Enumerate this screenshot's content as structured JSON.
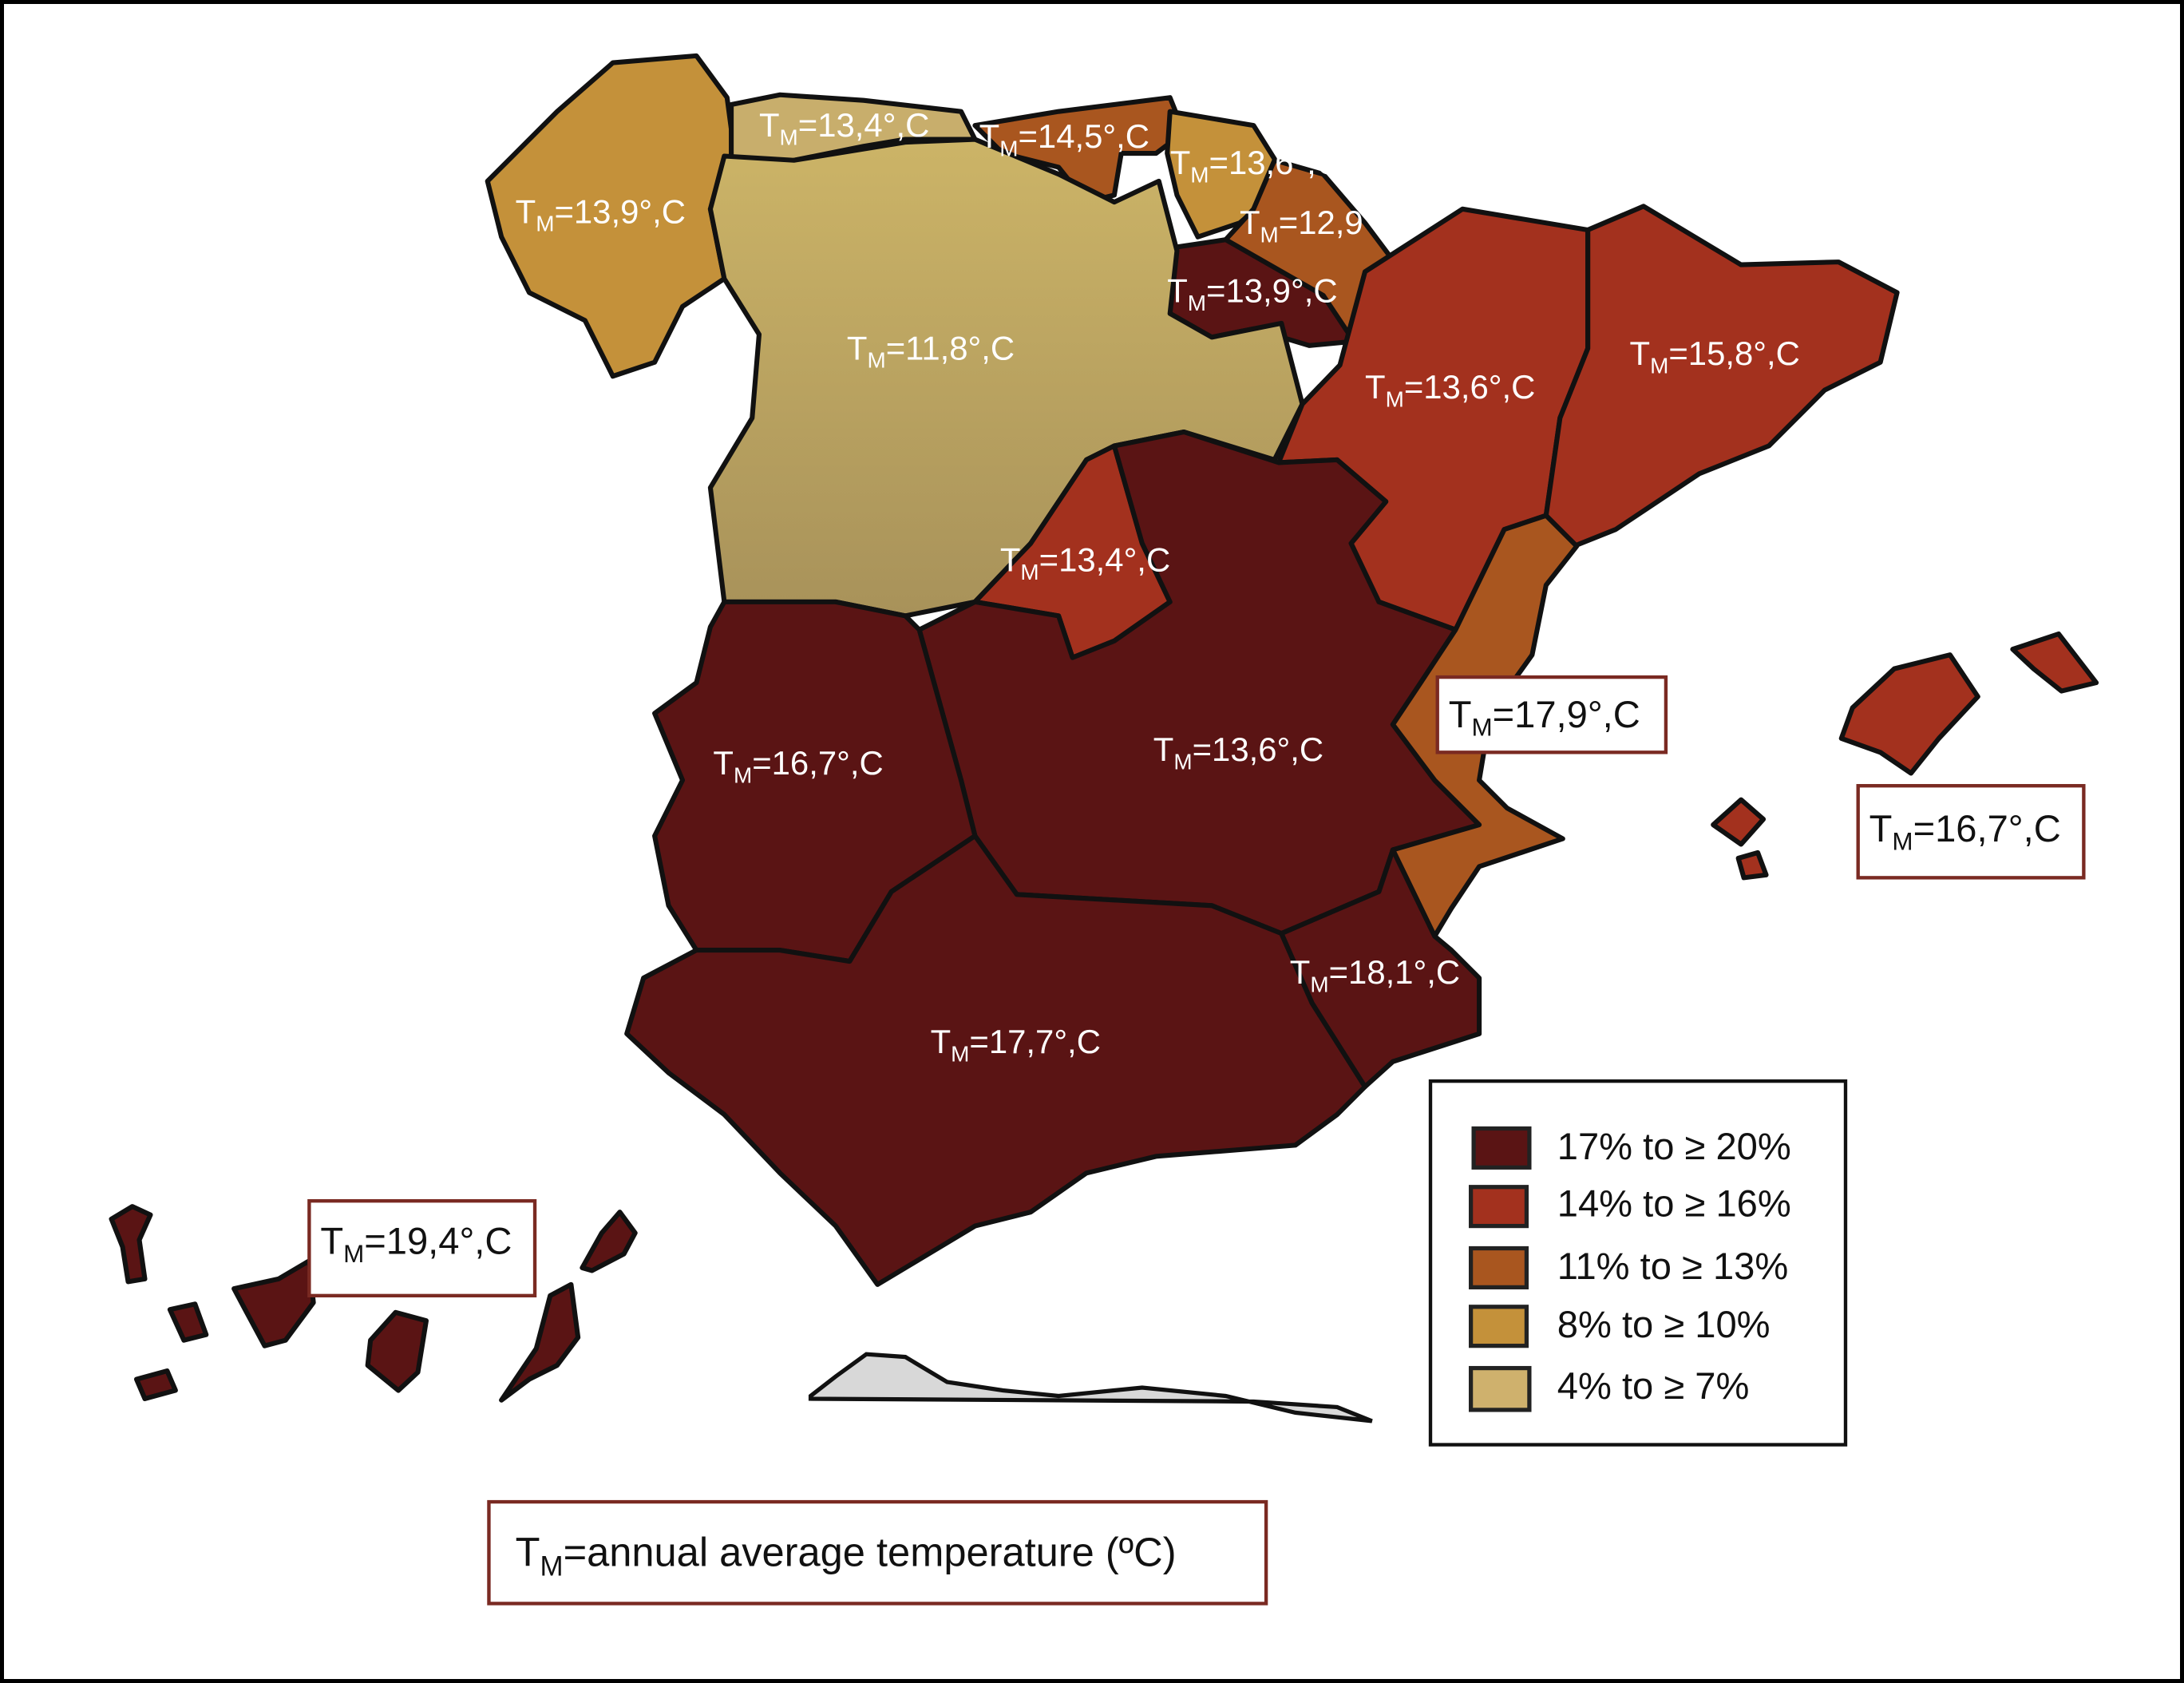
{
  "map": {
    "labels": {
      "galicia": {
        "T": "T",
        "sub": "M",
        "val": "=13,9°,C"
      },
      "asturias": {
        "T": "T",
        "sub": "M",
        "val": "=13,4°,C"
      },
      "cantabria": {
        "T": "T",
        "sub": "M",
        "val": "=14,5°,C"
      },
      "basque": {
        "T": "T",
        "sub": "M",
        "val": "=13,6°,C"
      },
      "navarra": {
        "T": "T",
        "sub": "M",
        "val": "=12,9°,C"
      },
      "rioja": {
        "T": "T",
        "sub": "M",
        "val": "=13,9°,C"
      },
      "castilla_leon": {
        "T": "T",
        "sub": "M",
        "val": "=11,8°,C"
      },
      "aragon": {
        "T": "T",
        "sub": "M",
        "val": "=13,6°,C"
      },
      "catalonia": {
        "T": "T",
        "sub": "M",
        "val": "=15,8°,C"
      },
      "madrid": {
        "T": "T",
        "sub": "M",
        "val": "=13,4°,C"
      },
      "castilla_mancha": {
        "T": "T",
        "sub": "M",
        "val": "=13,6°,C"
      },
      "valencia": {
        "T": "T",
        "sub": "M",
        "val": "=17,9°,C"
      },
      "extremadura": {
        "T": "T",
        "sub": "M",
        "val": "=16,7°,C"
      },
      "balearic": {
        "T": "T",
        "sub": "M",
        "val": "=16,7°,C"
      },
      "murcia": {
        "T": "T",
        "sub": "M",
        "val": "=18,1°,C"
      },
      "andalusia": {
        "T": "T",
        "sub": "M",
        "val": "=17,7°,C"
      },
      "canary": {
        "T": "T",
        "sub": "M",
        "val": "=19,4°,C"
      }
    },
    "legend": [
      {
        "label": "17% to ≥ 20%",
        "color": "#5a1414"
      },
      {
        "label": "14% to ≥ 16%",
        "color": "#a3311e"
      },
      {
        "label": "11% to ≥ 13%",
        "color": "#a9561f"
      },
      {
        "label": "8% to ≥ 10%",
        "color": "#c4913a"
      },
      {
        "label": "4% to ≥ 7%",
        "color": "#c8ae6c"
      }
    ],
    "footnote": {
      "T": "T",
      "sub": "M",
      "text": "=annual average temperature (ºC)"
    }
  }
}
